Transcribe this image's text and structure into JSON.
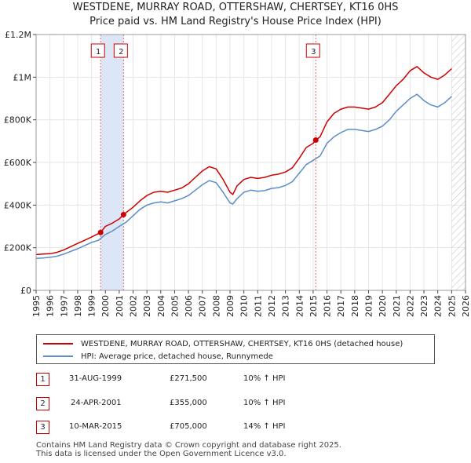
{
  "chart_data": {
    "type": "line",
    "title": "WESTDENE, MURRAY ROAD, OTTERSHAW, CHERTSEY, KT16 0HS",
    "subtitle": "Price paid vs. HM Land Registry's House Price Index (HPI)",
    "xlim": [
      1995,
      2026
    ],
    "ylim": [
      0,
      1200000
    ],
    "x_ticks": [
      "1995",
      "1996",
      "1997",
      "1998",
      "1999",
      "2000",
      "2001",
      "2002",
      "2003",
      "2004",
      "2005",
      "2006",
      "2007",
      "2008",
      "2009",
      "2010",
      "2011",
      "2012",
      "2013",
      "2014",
      "2015",
      "2016",
      "2017",
      "2018",
      "2019",
      "2020",
      "2021",
      "2022",
      "2023",
      "2024",
      "2025",
      "2026"
    ],
    "y_ticks": [
      {
        "value": 0,
        "label": "£0"
      },
      {
        "value": 200000,
        "label": "£200K"
      },
      {
        "value": 400000,
        "label": "£400K"
      },
      {
        "value": 600000,
        "label": "£600K"
      },
      {
        "value": 800000,
        "label": "£800K"
      },
      {
        "value": 1000000,
        "label": "£1M"
      },
      {
        "value": 1200000,
        "label": "£1.2M"
      }
    ],
    "grid": true,
    "series": [
      {
        "name": "WESTDENE, MURRAY ROAD, OTTERSHAW, CHERTSEY, KT16 0HS (detached house)",
        "color": "#cc0000",
        "x": [
          1995.0,
          1995.5,
          1996.0,
          1996.5,
          1997.0,
          1997.5,
          1998.0,
          1998.5,
          1999.0,
          1999.66,
          2000.0,
          2000.5,
          2001.0,
          2001.31,
          2001.5,
          2002.0,
          2002.5,
          2003.0,
          2003.5,
          2004.0,
          2004.5,
          2005.0,
          2005.5,
          2006.0,
          2006.5,
          2007.0,
          2007.5,
          2008.0,
          2008.5,
          2009.0,
          2009.2,
          2009.5,
          2010.0,
          2010.5,
          2011.0,
          2011.5,
          2012.0,
          2012.5,
          2013.0,
          2013.5,
          2014.0,
          2014.5,
          2015.0,
          2015.19,
          2015.5,
          2016.0,
          2016.5,
          2017.0,
          2017.5,
          2018.0,
          2018.5,
          2019.0,
          2019.5,
          2020.0,
          2020.5,
          2021.0,
          2021.5,
          2022.0,
          2022.5,
          2023.0,
          2023.5,
          2024.0,
          2024.5,
          2025.0
        ],
        "values": [
          168000,
          170000,
          172000,
          178000,
          190000,
          205000,
          220000,
          235000,
          250000,
          271500,
          300000,
          315000,
          335000,
          355000,
          365000,
          390000,
          420000,
          445000,
          460000,
          465000,
          460000,
          470000,
          480000,
          500000,
          530000,
          560000,
          580000,
          570000,
          520000,
          460000,
          450000,
          490000,
          520000,
          530000,
          525000,
          530000,
          540000,
          545000,
          555000,
          575000,
          620000,
          670000,
          690000,
          705000,
          720000,
          790000,
          830000,
          850000,
          860000,
          860000,
          855000,
          850000,
          860000,
          880000,
          920000,
          960000,
          990000,
          1030000,
          1050000,
          1020000,
          1000000,
          990000,
          1010000,
          1040000
        ]
      },
      {
        "name": "HPI: Average price, detached house, Runnymede",
        "color": "#5b8dc9",
        "x": [
          1995.0,
          1995.5,
          1996.0,
          1996.5,
          1997.0,
          1997.5,
          1998.0,
          1998.5,
          1999.0,
          1999.5,
          2000.0,
          2000.5,
          2001.0,
          2001.5,
          2002.0,
          2002.5,
          2003.0,
          2003.5,
          2004.0,
          2004.5,
          2005.0,
          2005.5,
          2006.0,
          2006.5,
          2007.0,
          2007.5,
          2008.0,
          2008.5,
          2009.0,
          2009.2,
          2009.5,
          2010.0,
          2010.5,
          2011.0,
          2011.5,
          2012.0,
          2012.5,
          2013.0,
          2013.5,
          2014.0,
          2014.5,
          2015.0,
          2015.5,
          2016.0,
          2016.5,
          2017.0,
          2017.5,
          2018.0,
          2018.5,
          2019.0,
          2019.5,
          2020.0,
          2020.5,
          2021.0,
          2021.5,
          2022.0,
          2022.5,
          2023.0,
          2023.5,
          2024.0,
          2024.5,
          2025.0
        ],
        "values": [
          150000,
          152000,
          155000,
          160000,
          170000,
          183000,
          195000,
          210000,
          225000,
          235000,
          262000,
          278000,
          300000,
          320000,
          350000,
          380000,
          400000,
          410000,
          415000,
          410000,
          420000,
          430000,
          445000,
          470000,
          495000,
          515000,
          505000,
          460000,
          410000,
          405000,
          430000,
          460000,
          470000,
          465000,
          468000,
          478000,
          482000,
          492000,
          510000,
          550000,
          590000,
          610000,
          630000,
          690000,
          720000,
          740000,
          755000,
          755000,
          750000,
          745000,
          755000,
          770000,
          800000,
          840000,
          870000,
          900000,
          920000,
          890000,
          870000,
          860000,
          880000,
          910000
        ]
      }
    ],
    "sales": [
      {
        "id": "1",
        "x": 1999.66,
        "value": 271500,
        "date": "31-AUG-1999",
        "price": "£271,500",
        "hpi": "10% ↑ HPI"
      },
      {
        "id": "2",
        "x": 2001.31,
        "value": 355000,
        "date": "24-APR-2001",
        "price": "£355,000",
        "hpi": "10% ↑ HPI"
      },
      {
        "id": "3",
        "x": 2015.19,
        "value": 705000,
        "date": "10-MAR-2015",
        "price": "£705,000",
        "hpi": "14% ↑ HPI"
      }
    ],
    "shaded_span": [
      1999.66,
      2001.31
    ],
    "hatched_from": 2025.0
  },
  "footer": {
    "line1": "Contains HM Land Registry data © Crown copyright and database right 2025.",
    "line2": "This data is licensed under the Open Government Licence v3.0."
  },
  "colors": {
    "price_line": "#cc0000",
    "hpi_line": "#5b8dc9",
    "shade": "#dde6f6",
    "grid": "#e6e6e6"
  }
}
